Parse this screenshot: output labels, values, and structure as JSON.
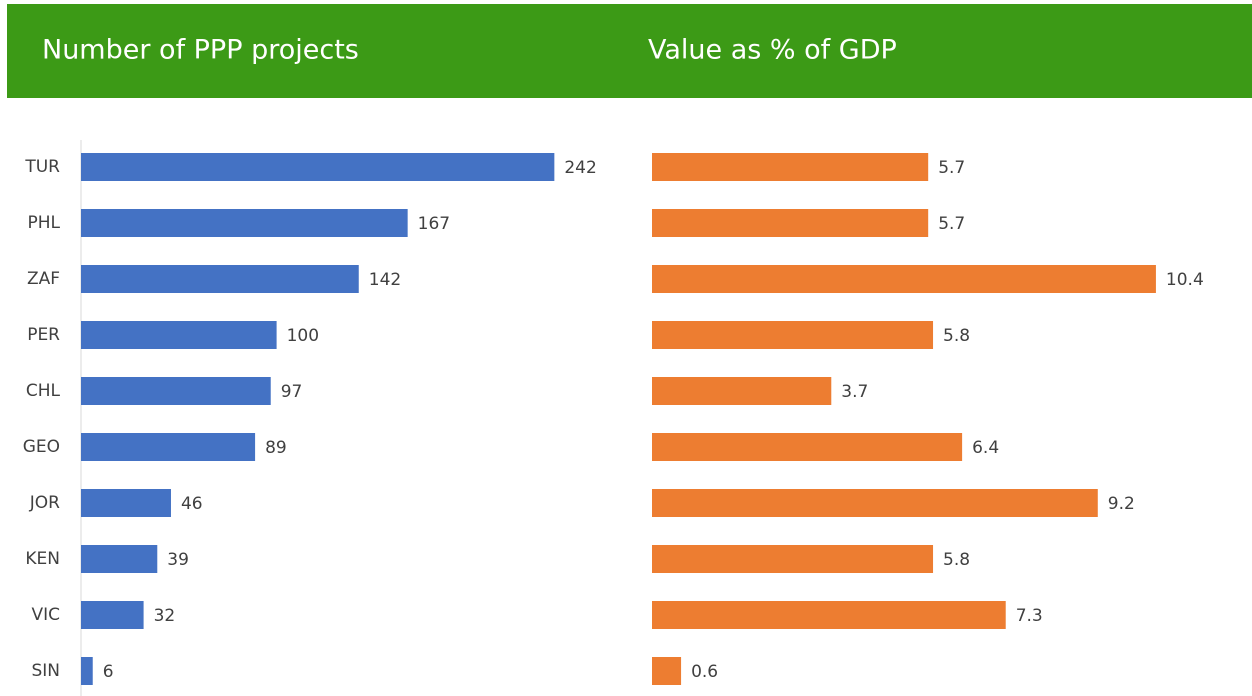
{
  "chart_data": [
    {
      "type": "bar",
      "title": "Number of PPP projects",
      "categories": [
        "TUR",
        "PHL",
        "ZAF",
        "PER",
        "CHL",
        "GEO",
        "JOR",
        "KEN",
        "VIC",
        "SIN"
      ],
      "values": [
        242,
        167,
        142,
        100,
        97,
        89,
        46,
        39,
        32,
        6
      ],
      "color": "#4472c4",
      "xlim": [
        0,
        250
      ]
    },
    {
      "type": "bar",
      "title": "Value as % of GDP",
      "values": [
        5.7,
        5.7,
        10.4,
        5.8,
        3.7,
        6.4,
        9.2,
        5.8,
        7.3,
        0.6
      ],
      "color": "#ed7d31",
      "xlim": [
        0,
        11
      ]
    }
  ]
}
